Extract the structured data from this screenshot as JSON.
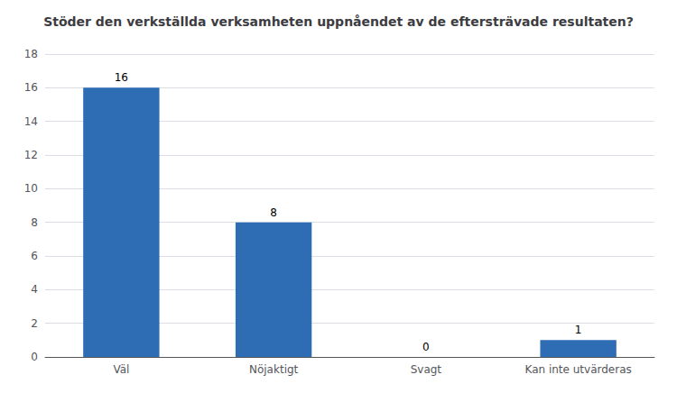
{
  "chart_data": {
    "type": "bar",
    "title": "Stöder den verkställda verksamheten uppnåendet av de eftersträvade resultaten?",
    "categories": [
      "Väl",
      "Nöjaktigt",
      "Svagt",
      "Kan inte utvärderas"
    ],
    "values": [
      16,
      8,
      0,
      1
    ],
    "color": "#2E6DB4",
    "ylim": [
      0,
      18
    ],
    "yticks": [
      0,
      2,
      4,
      6,
      8,
      10,
      12,
      14,
      16,
      18
    ],
    "grid": true,
    "data_labels": true
  }
}
